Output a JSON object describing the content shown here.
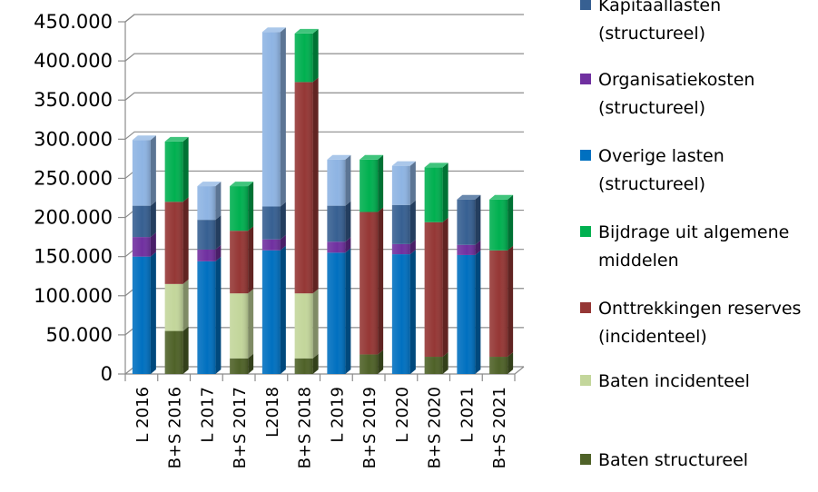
{
  "chart_data": {
    "type": "bar",
    "stacked": true,
    "ylim": [
      0,
      450000
    ],
    "yticks": [
      "0",
      "50.000",
      "100.000",
      "150.000",
      "200.000",
      "250.000",
      "300.000",
      "350.000",
      "400.000",
      "450.000"
    ],
    "yticks_values": [
      0,
      50000,
      100000,
      150000,
      200000,
      250000,
      300000,
      350000,
      400000,
      450000
    ],
    "categories": [
      "L 2016",
      "B+S 2016",
      "L 2017",
      "B+S 2017",
      "L2018",
      "B+S 2018",
      "L 2019",
      "B+S 2019",
      "L 2020",
      "B+S 2020",
      "L 2021",
      "B+S 2021"
    ],
    "grid": true,
    "legend_position": "right",
    "series": [
      {
        "name": "Baten structureel",
        "color": "#4f6228",
        "values": [
          0,
          55000,
          0,
          20000,
          0,
          20000,
          0,
          25000,
          0,
          22000,
          0,
          22000
        ]
      },
      {
        "name": "Baten incidenteel",
        "color": "#c3d69b",
        "values": [
          0,
          60000,
          0,
          83000,
          0,
          83000,
          0,
          0,
          0,
          0,
          0,
          0
        ]
      },
      {
        "name": "Onttrekkingen reserves (incidenteel)",
        "color": "#953735",
        "values": [
          0,
          105000,
          0,
          80000,
          0,
          270000,
          0,
          182000,
          0,
          172000,
          0,
          136000
        ]
      },
      {
        "name": "Bijdrage uit algemene middelen",
        "color": "#00b050",
        "values": [
          0,
          77000,
          0,
          57000,
          0,
          62000,
          0,
          67000,
          0,
          70000,
          0,
          65000
        ]
      },
      {
        "name": "Overige lasten (structureel)",
        "color": "#0070c0",
        "values": [
          150000,
          0,
          144000,
          0,
          158000,
          0,
          155000,
          0,
          153000,
          0,
          152000,
          0
        ]
      },
      {
        "name": "Organisatiekosten (structureel)",
        "color": "#7030a0",
        "values": [
          25000,
          0,
          15000,
          0,
          14000,
          0,
          14000,
          0,
          13000,
          0,
          13000,
          0
        ]
      },
      {
        "name": "Kapitaallasten (structureel)",
        "color": "#376092",
        "values": [
          40000,
          0,
          38000,
          0,
          42000,
          0,
          46000,
          0,
          50000,
          0,
          58000,
          0
        ]
      },
      {
        "name": "",
        "color": "#8eb4e3",
        "values": [
          84000,
          0,
          43000,
          0,
          223000,
          0,
          59000,
          0,
          50000,
          0,
          0,
          0
        ]
      }
    ],
    "legend": [
      {
        "lines": [
          "Kapitaallasten",
          "(structureel)"
        ],
        "color": "#376092"
      },
      {
        "lines": [
          "Organisatiekosten",
          "(structureel)"
        ],
        "color": "#7030a0"
      },
      {
        "lines": [
          "Overige lasten",
          "(structureel)"
        ],
        "color": "#0070c0"
      },
      {
        "lines": [
          "Bijdrage uit algemene",
          "middelen"
        ],
        "color": "#00b050"
      },
      {
        "lines": [
          "Onttrekkingen reserves",
          "(incidenteel)"
        ],
        "color": "#953735"
      },
      {
        "lines": [
          "Baten incidenteel"
        ],
        "color": "#c3d69b"
      },
      {
        "lines": [
          "Baten structureel"
        ],
        "color": "#4f6228"
      }
    ]
  }
}
